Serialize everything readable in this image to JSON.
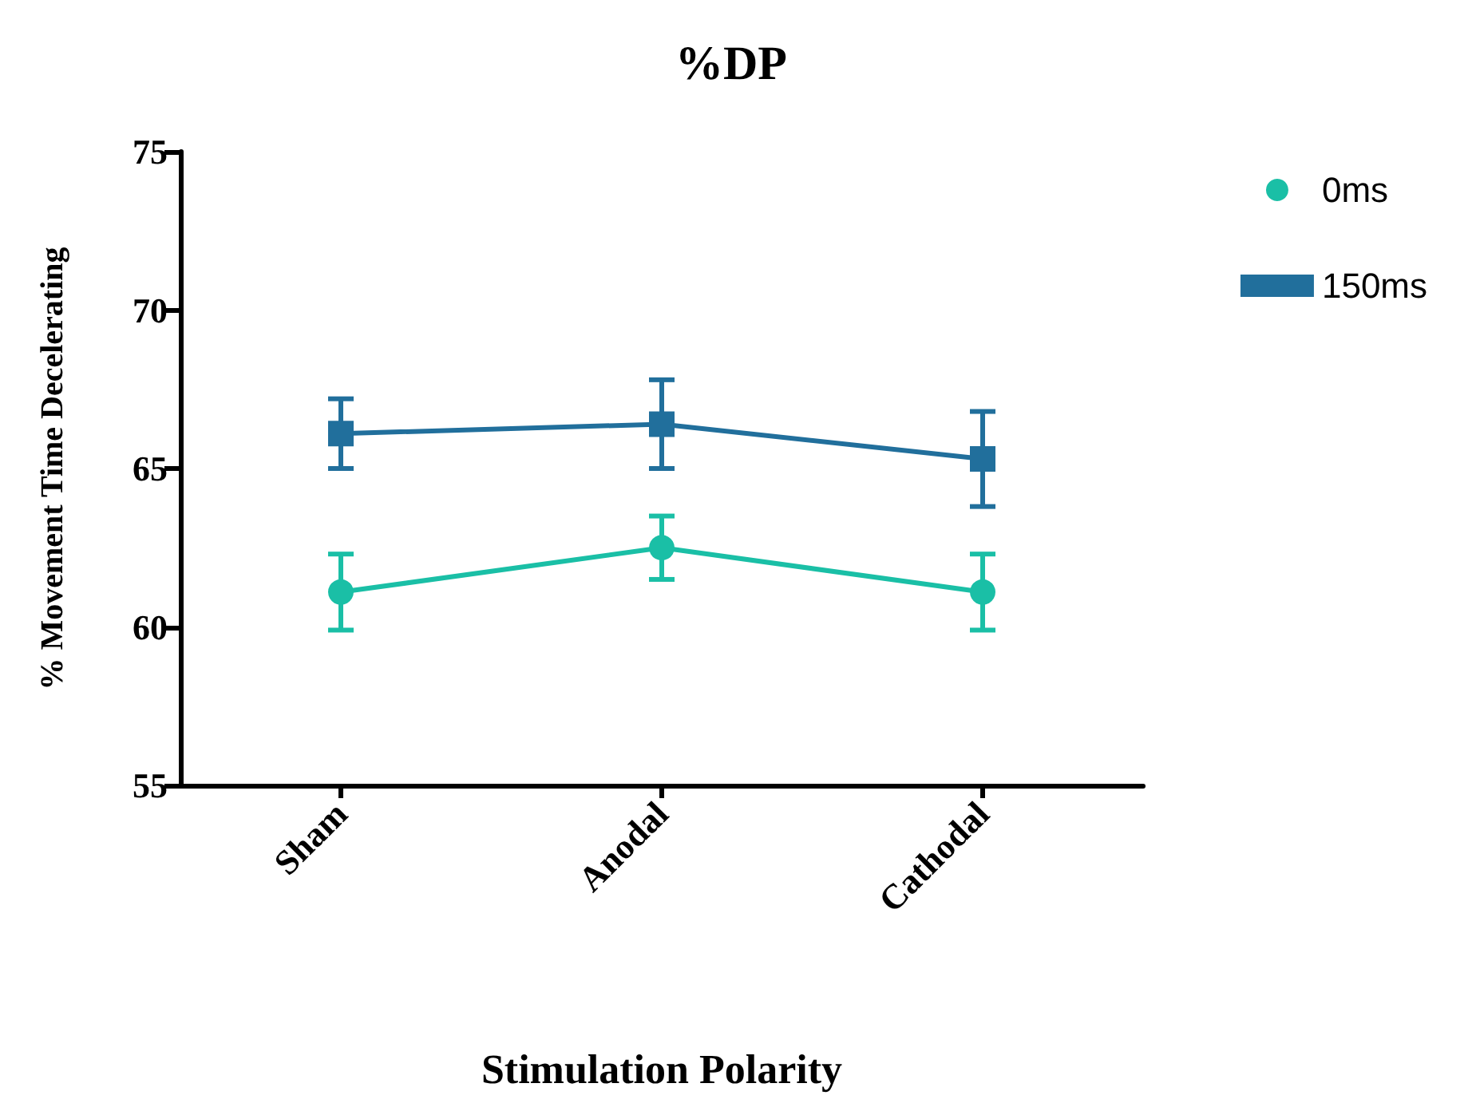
{
  "chart_data": {
    "type": "line",
    "title": "%DP",
    "xlabel": "Stimulation Polarity",
    "ylabel": "% Movement Time Decelerating",
    "categories": [
      "Sham",
      "Anodal",
      "Cathodal"
    ],
    "series": [
      {
        "name": "0ms",
        "color": "#1abfa6",
        "marker": "circle",
        "values": [
          61.1,
          62.5,
          61.1
        ],
        "errors": [
          1.2,
          1.0,
          1.2
        ]
      },
      {
        "name": "150ms",
        "color": "#216f9c",
        "marker": "square",
        "values": [
          66.1,
          66.4,
          65.3
        ],
        "errors": [
          1.1,
          1.4,
          1.5
        ]
      }
    ],
    "ylim": [
      55,
      75
    ],
    "yticks": [
      55,
      60,
      65,
      70,
      75
    ],
    "grid": false,
    "legend": "top right"
  }
}
